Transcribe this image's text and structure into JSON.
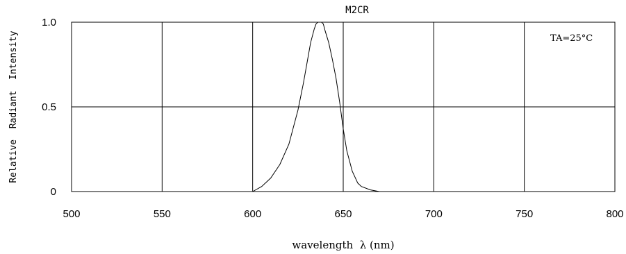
{
  "chart_data": {
    "type": "line",
    "title": "M2CR",
    "xlabel": "wavelength  λ (nm)",
    "ylabel": "Relative  Radiant  Intensity",
    "annotation": "TA=25°C",
    "xlim": [
      500,
      800
    ],
    "ylim": [
      0,
      1.0
    ],
    "x_ticks": [
      500,
      550,
      600,
      650,
      700,
      750,
      800
    ],
    "x_tick_labels": [
      "500",
      "550",
      "600",
      "650",
      "700",
      "750",
      "800"
    ],
    "y_ticks": [
      0,
      0.5,
      1.0
    ],
    "y_tick_labels": [
      "0",
      "0.5",
      "1.0"
    ],
    "grid": true,
    "line_color": "#000000",
    "series": [
      {
        "x": [
          600,
          605,
          610,
          615,
          620,
          625,
          628,
          630,
          632,
          634,
          635,
          636,
          637,
          638,
          639,
          640,
          642,
          644,
          646,
          648,
          650,
          652,
          655,
          658,
          660,
          665,
          670
        ],
        "y": [
          0.0,
          0.03,
          0.08,
          0.16,
          0.28,
          0.48,
          0.64,
          0.76,
          0.88,
          0.96,
          0.99,
          1.0,
          1.0,
          1.0,
          0.99,
          0.95,
          0.88,
          0.78,
          0.67,
          0.53,
          0.37,
          0.24,
          0.12,
          0.05,
          0.03,
          0.01,
          0.0
        ]
      }
    ]
  }
}
